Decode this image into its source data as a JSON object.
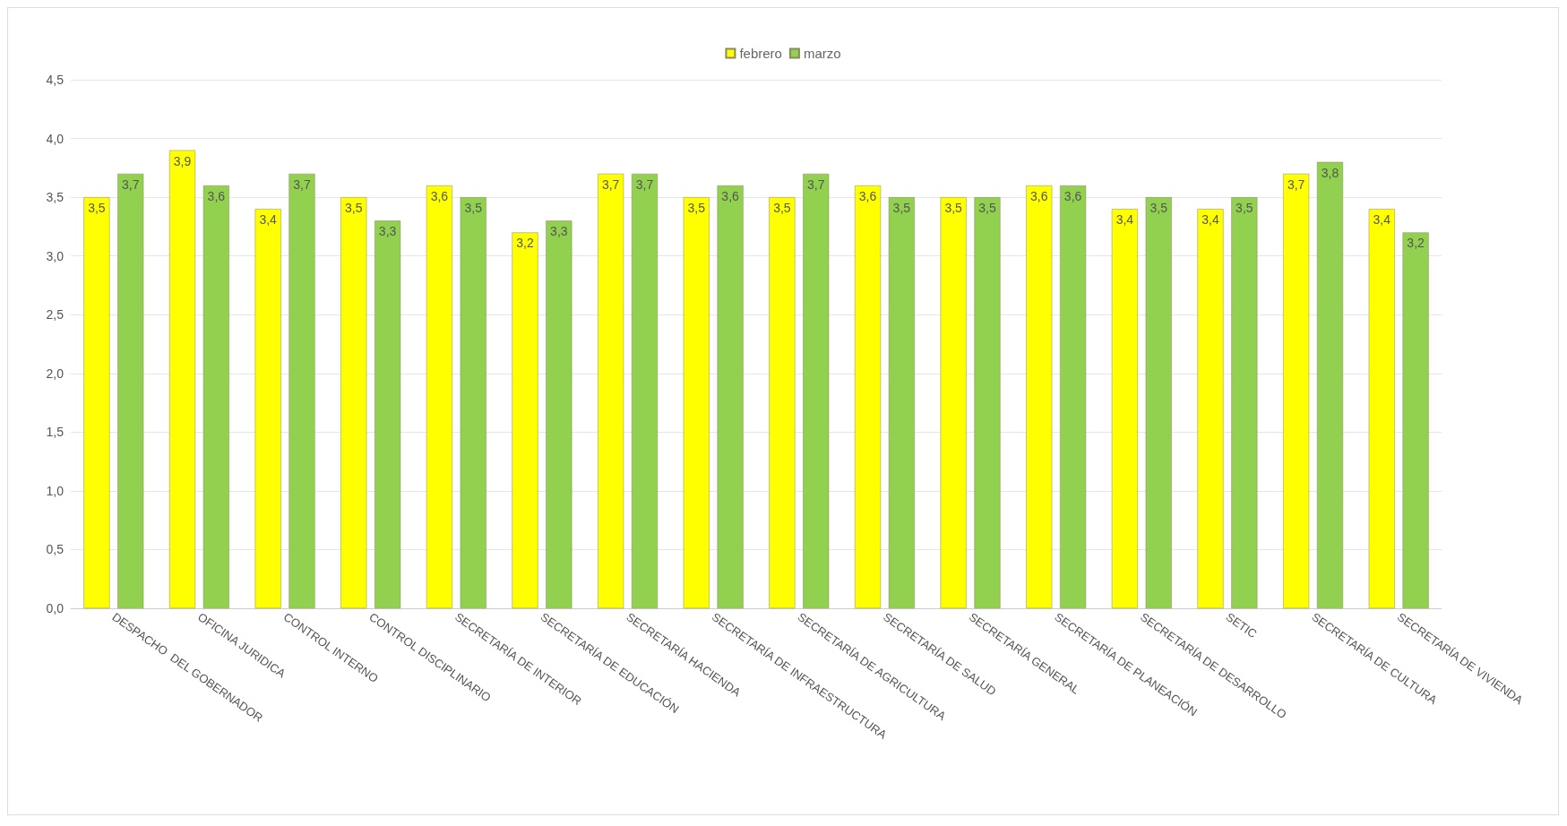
{
  "chart_data": {
    "type": "bar",
    "categories": [
      "DESPACHO  DEL GOBERNADOR",
      "OFICINA JURIDICA",
      "CONTROL INTERNO",
      "CONTROL DISCIPLINARIO",
      "SECRETARÍA DE INTERIOR",
      "SECRETARÍA DE EDUCACIÓN",
      "SECRETARÍA HACIENDA",
      "SECRETARÍA DE INFRAESTRUCTURA",
      "SECRETARÍA DE AGRICULTURA",
      "SECRETARÍA DE SALUD",
      "SECRETARÍA GENERAL",
      "SECRETARÍA DE PLANEACIÓN",
      "SECRETARÍA DE DESARROLLO",
      "SETIC",
      "SECRETARÍA DE CULTURA",
      "SECRETARÍA DE VIVIENDA"
    ],
    "series": [
      {
        "name": "febrero",
        "color": "#ffff00",
        "values": [
          3.5,
          3.9,
          3.4,
          3.5,
          3.6,
          3.2,
          3.7,
          3.5,
          3.5,
          3.6,
          3.5,
          3.6,
          3.4,
          3.4,
          3.7,
          3.4
        ],
        "value_labels": [
          "3,5",
          "3,9",
          "3,4",
          "3,5",
          "3,6",
          "3,2",
          "3,7",
          "3,5",
          "3,5",
          "3,6",
          "3,5",
          "3,6",
          "3,4",
          "3,4",
          "3,7",
          "3,4"
        ]
      },
      {
        "name": "marzo",
        "color": "#92d050",
        "values": [
          3.7,
          3.6,
          3.7,
          3.3,
          3.5,
          3.3,
          3.7,
          3.6,
          3.7,
          3.5,
          3.5,
          3.6,
          3.5,
          3.5,
          3.8,
          3.2
        ],
        "value_labels": [
          "3,7",
          "3,6",
          "3,7",
          "3,3",
          "3,5",
          "3,3",
          "3,7",
          "3,6",
          "3,7",
          "3,5",
          "3,5",
          "3,6",
          "3,5",
          "3,5",
          "3,8",
          "3,2"
        ]
      }
    ],
    "ylim": [
      0,
      4.5
    ],
    "yticks": [
      {
        "value": 0,
        "label": "0,0"
      },
      {
        "value": 0.5,
        "label": "0,5"
      },
      {
        "value": 1,
        "label": "1,0"
      },
      {
        "value": 1.5,
        "label": "1,5"
      },
      {
        "value": 2,
        "label": "2,0"
      },
      {
        "value": 2.5,
        "label": "2,5"
      },
      {
        "value": 3,
        "label": "3,0"
      },
      {
        "value": 3.5,
        "label": "3,5"
      },
      {
        "value": 4,
        "label": "4,0"
      },
      {
        "value": 4.5,
        "label": "4,5"
      }
    ],
    "grid": "y",
    "legend": "top"
  }
}
